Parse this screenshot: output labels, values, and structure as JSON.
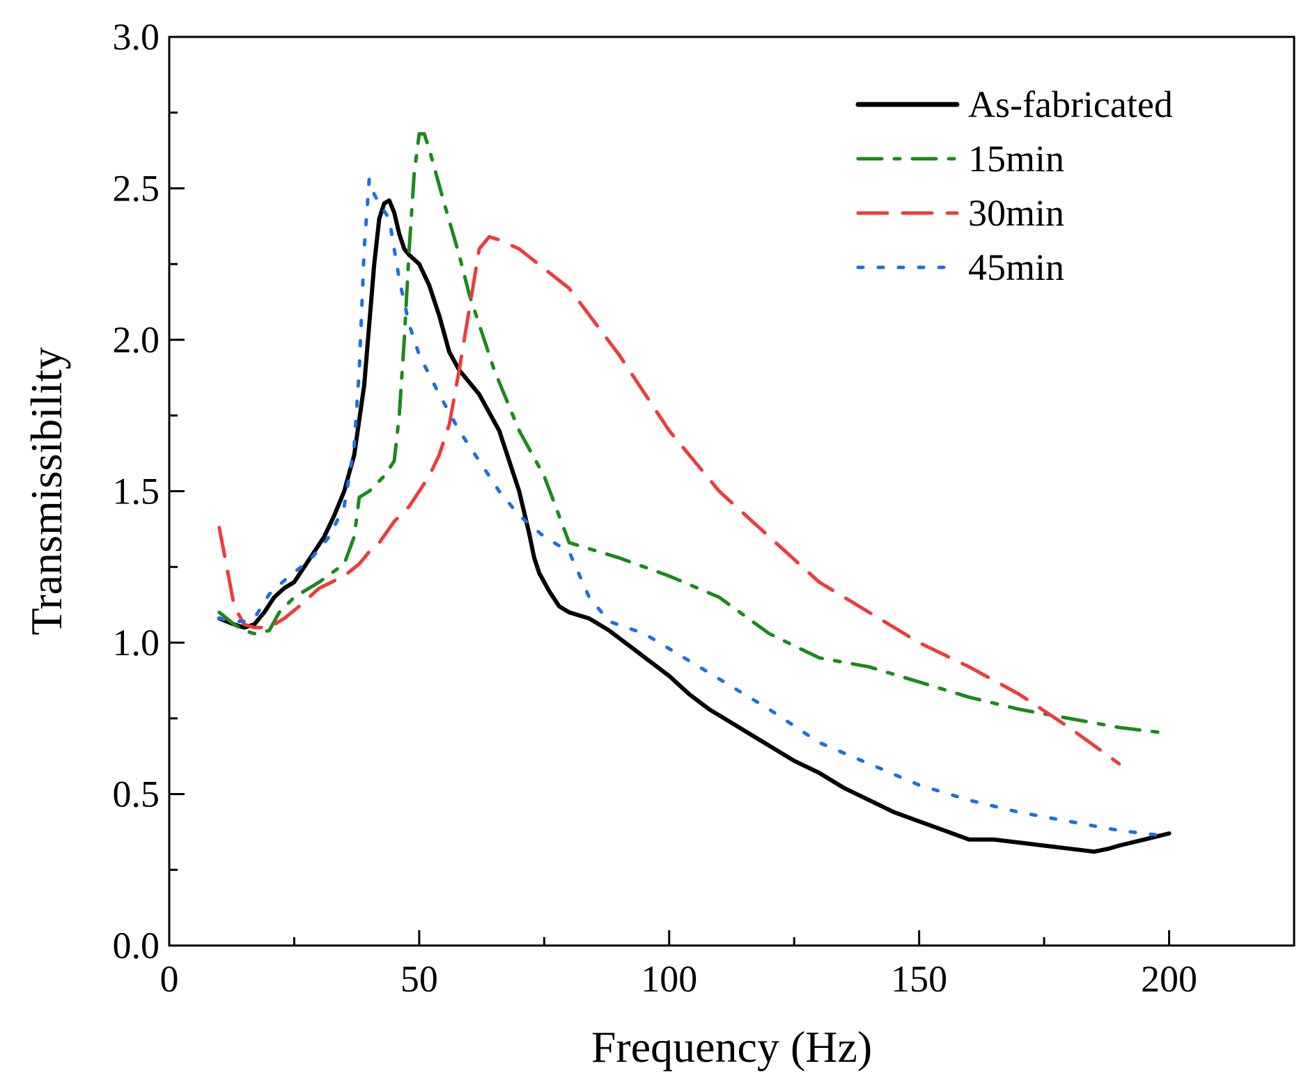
{
  "chart_data": {
    "type": "line",
    "title": "",
    "xlabel": "Frequency (Hz)",
    "ylabel": "Transmissibility",
    "xlim": [
      0,
      225
    ],
    "ylim": [
      0,
      3.0
    ],
    "xticks": [
      0,
      50,
      100,
      150,
      200
    ],
    "xtick_labels": [
      "0",
      "50",
      "100",
      "150",
      "200"
    ],
    "yticks": [
      0.0,
      0.5,
      1.0,
      1.5,
      2.0,
      2.5,
      3.0
    ],
    "ytick_labels": [
      "0.0",
      "0.5",
      "1.0",
      "1.5",
      "2.0",
      "2.5",
      "3.0"
    ],
    "grid": false,
    "legend_position": "top-right",
    "series": [
      {
        "name": "As-fabricated",
        "color": "#000000",
        "style": "solid",
        "x": [
          10,
          13,
          15,
          17,
          19,
          21,
          23,
          25,
          27,
          29,
          31,
          33,
          35,
          37,
          39,
          40,
          41,
          42,
          43,
          44,
          45,
          46,
          47,
          48,
          50,
          52,
          54,
          56,
          58,
          60,
          62,
          64,
          66,
          68,
          70,
          72,
          73,
          74,
          76,
          78,
          80,
          84,
          88,
          92,
          96,
          100,
          104,
          108,
          112,
          116,
          120,
          125,
          130,
          135,
          140,
          145,
          150,
          155,
          160,
          165,
          170,
          175,
          180,
          185,
          188,
          190,
          195,
          200
        ],
        "values": [
          1.08,
          1.06,
          1.05,
          1.06,
          1.1,
          1.15,
          1.18,
          1.2,
          1.25,
          1.3,
          1.35,
          1.42,
          1.5,
          1.62,
          1.85,
          2.05,
          2.25,
          2.4,
          2.45,
          2.46,
          2.42,
          2.35,
          2.3,
          2.28,
          2.25,
          2.18,
          2.08,
          1.96,
          1.9,
          1.86,
          1.82,
          1.76,
          1.7,
          1.6,
          1.5,
          1.36,
          1.28,
          1.23,
          1.17,
          1.12,
          1.1,
          1.08,
          1.04,
          0.99,
          0.94,
          0.89,
          0.83,
          0.78,
          0.74,
          0.7,
          0.66,
          0.61,
          0.57,
          0.52,
          0.48,
          0.44,
          0.41,
          0.38,
          0.35,
          0.35,
          0.34,
          0.33,
          0.32,
          0.31,
          0.32,
          0.33,
          0.35,
          0.37
        ]
      },
      {
        "name": "15min",
        "color": "#1a8a1a",
        "style": "dashdot",
        "x": [
          10,
          13,
          15,
          17,
          20,
          22,
          25,
          30,
          35,
          37,
          38,
          40,
          43,
          45,
          46,
          47,
          48,
          49,
          50,
          51,
          52,
          55,
          58,
          60,
          65,
          70,
          75,
          80,
          90,
          100,
          110,
          120,
          130,
          140,
          150,
          160,
          170,
          180,
          190,
          200
        ],
        "values": [
          1.1,
          1.06,
          1.04,
          1.03,
          1.04,
          1.1,
          1.15,
          1.2,
          1.26,
          1.35,
          1.48,
          1.5,
          1.55,
          1.6,
          1.75,
          2.0,
          2.3,
          2.55,
          2.68,
          2.68,
          2.63,
          2.45,
          2.28,
          2.15,
          1.9,
          1.7,
          1.55,
          1.33,
          1.28,
          1.22,
          1.15,
          1.03,
          0.95,
          0.92,
          0.87,
          0.82,
          0.78,
          0.75,
          0.72,
          0.7
        ]
      },
      {
        "name": "30min",
        "color": "#ee3b3b",
        "style": "dashed",
        "x": [
          10,
          13,
          15,
          17,
          20,
          23,
          26,
          30,
          35,
          38,
          40,
          42,
          45,
          48,
          50,
          52,
          54,
          56,
          58,
          60,
          62,
          64,
          66,
          70,
          80,
          90,
          100,
          110,
          120,
          130,
          140,
          150,
          160,
          170,
          180,
          190
        ],
        "values": [
          1.38,
          1.12,
          1.06,
          1.05,
          1.05,
          1.08,
          1.12,
          1.18,
          1.22,
          1.26,
          1.3,
          1.33,
          1.4,
          1.45,
          1.5,
          1.55,
          1.62,
          1.72,
          1.9,
          2.1,
          2.3,
          2.34,
          2.33,
          2.3,
          2.17,
          1.95,
          1.7,
          1.5,
          1.35,
          1.2,
          1.1,
          1.0,
          0.92,
          0.83,
          0.72,
          0.6
        ]
      },
      {
        "name": "45min",
        "color": "#1e6fe0",
        "style": "dotted",
        "x": [
          10,
          13,
          15,
          17,
          20,
          24,
          28,
          32,
          35,
          37,
          38,
          39,
          40,
          41,
          42,
          44,
          46,
          48,
          50,
          54,
          58,
          62,
          66,
          70,
          75,
          80,
          84,
          88,
          95,
          100,
          110,
          120,
          130,
          140,
          150,
          160,
          170,
          180,
          190,
          200
        ],
        "values": [
          1.08,
          1.07,
          1.07,
          1.08,
          1.16,
          1.22,
          1.27,
          1.35,
          1.45,
          1.65,
          1.9,
          2.3,
          2.53,
          2.48,
          2.45,
          2.4,
          2.2,
          2.05,
          1.95,
          1.82,
          1.7,
          1.6,
          1.5,
          1.42,
          1.35,
          1.3,
          1.15,
          1.07,
          1.03,
          0.98,
          0.88,
          0.78,
          0.67,
          0.6,
          0.53,
          0.48,
          0.44,
          0.41,
          0.38,
          0.36
        ]
      }
    ]
  }
}
